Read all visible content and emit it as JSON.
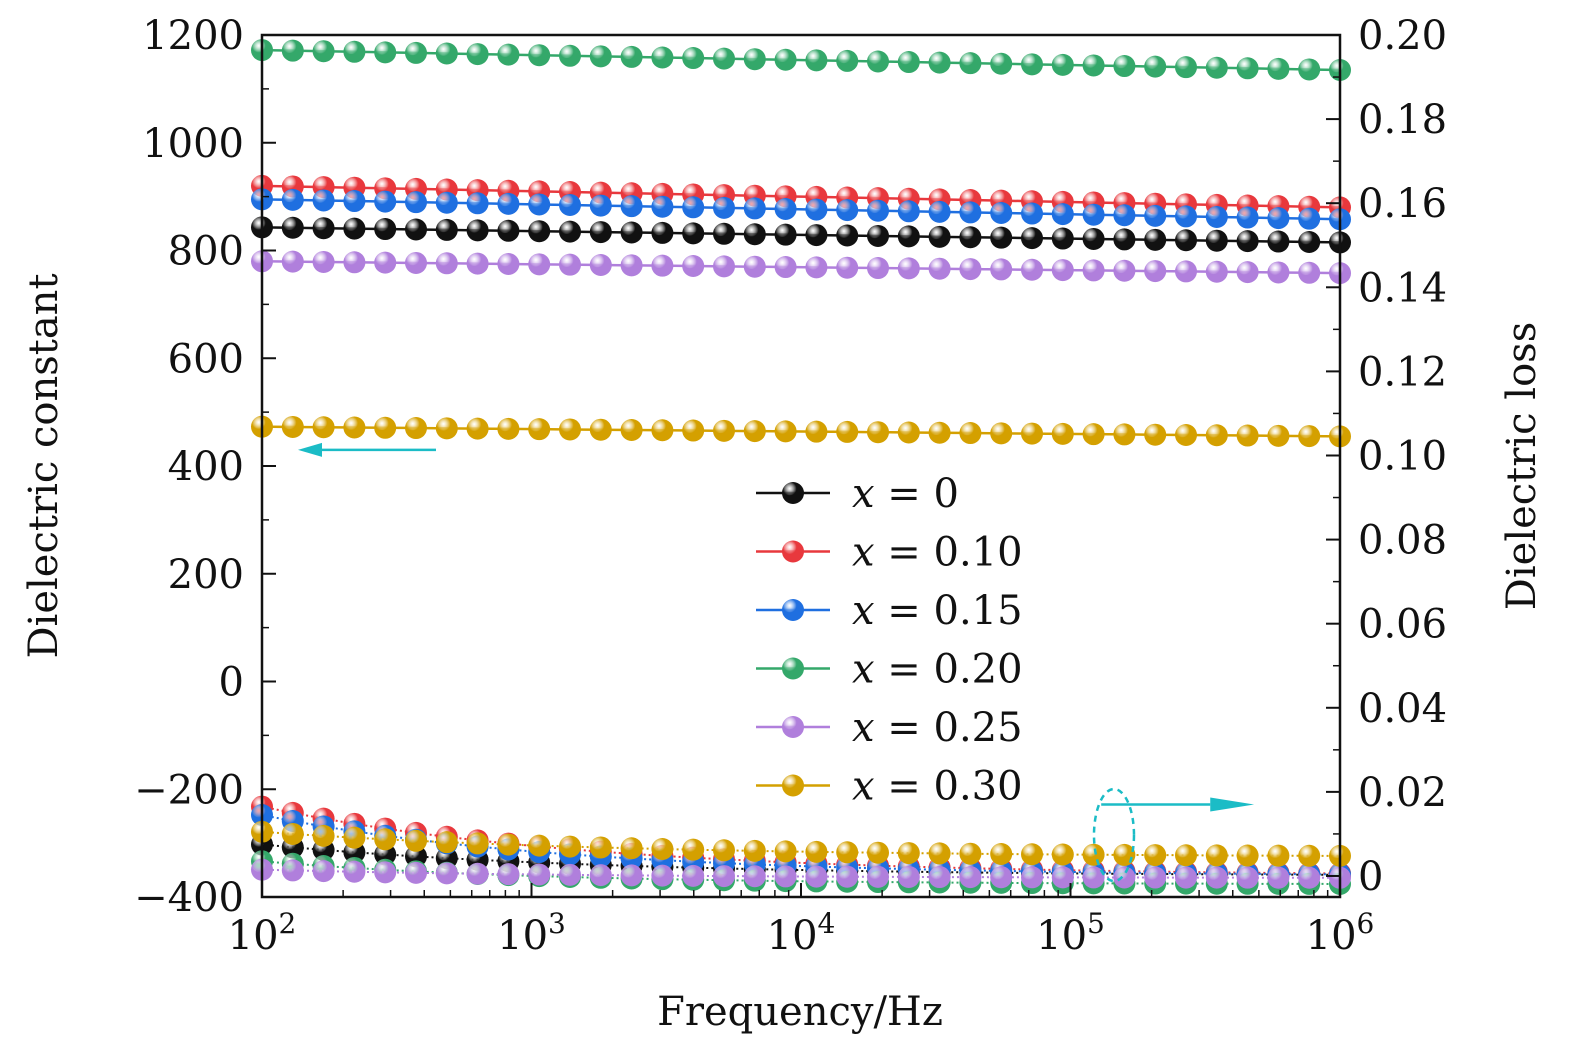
{
  "chart_data": {
    "type": "scatter",
    "title": "",
    "xlabel": "Frequency/Hz",
    "ylabel_left": "Dielectric constant",
    "ylabel_right": "Dielectric loss",
    "x_scale": "log10",
    "xlim": [
      100,
      1000000
    ],
    "ylim_left": [
      -400,
      1200
    ],
    "ylim_right": [
      -0.005,
      0.2
    ],
    "x_ticks": [
      {
        "value": 100,
        "base": "10",
        "exp": "2"
      },
      {
        "value": 1000,
        "base": "10",
        "exp": "3"
      },
      {
        "value": 10000,
        "base": "10",
        "exp": "4"
      },
      {
        "value": 100000,
        "base": "10",
        "exp": "5"
      },
      {
        "value": 1000000,
        "base": "10",
        "exp": "6"
      }
    ],
    "y_left_ticks": [
      {
        "value": 1200,
        "label": "1200"
      },
      {
        "value": 1000,
        "label": "1000"
      },
      {
        "value": 800,
        "label": "800"
      },
      {
        "value": 600,
        "label": "600"
      },
      {
        "value": 400,
        "label": "400"
      },
      {
        "value": 200,
        "label": "200"
      },
      {
        "value": 0,
        "label": "0"
      },
      {
        "value": -200,
        "label": "−200"
      },
      {
        "value": -400,
        "label": "−400"
      }
    ],
    "y_right_ticks": [
      {
        "value": 0.2,
        "label": "0.20"
      },
      {
        "value": 0.18,
        "label": "0.18"
      },
      {
        "value": 0.16,
        "label": "0.16"
      },
      {
        "value": 0.14,
        "label": "0.14"
      },
      {
        "value": 0.12,
        "label": "0.12"
      },
      {
        "value": 0.1,
        "label": "0.10"
      },
      {
        "value": 0.08,
        "label": "0.08"
      },
      {
        "value": 0.06,
        "label": "0.06"
      },
      {
        "value": 0.04,
        "label": "0.04"
      },
      {
        "value": 0.02,
        "label": "0.02"
      },
      {
        "value": 0,
        "label": "0"
      }
    ],
    "frequency_points": 36,
    "series": [
      {
        "name": "x = 0",
        "var": "x",
        "eq": "=",
        "num": "0",
        "color": "#111111",
        "dielectric_constant": {
          "start": 843,
          "end": 815
        },
        "dielectric_loss": {
          "start": 0.0075,
          "end": 0.0,
          "decay": 1.2
        }
      },
      {
        "name": "x = 0.10",
        "var": "x",
        "eq": "=",
        "num": "0.10",
        "color": "#e8383d",
        "dielectric_constant": {
          "start": 920,
          "end": 880
        },
        "dielectric_loss": {
          "start": 0.0165,
          "end": 0.0,
          "decay": 1.2
        }
      },
      {
        "name": "x = 0.15",
        "var": "x",
        "eq": "=",
        "num": "0.15",
        "color": "#1f6fe0",
        "dielectric_constant": {
          "start": 895,
          "end": 858
        },
        "dielectric_loss": {
          "start": 0.0145,
          "end": 0.0,
          "decay": 1.1
        }
      },
      {
        "name": "x = 0.20",
        "var": "x",
        "eq": "=",
        "num": "0.20",
        "color": "#34a86a",
        "dielectric_constant": {
          "start": 1172,
          "end": 1135
        },
        "dielectric_loss": {
          "start": 0.0035,
          "end": -0.002,
          "decay": 1.0
        }
      },
      {
        "name": "x = 0.25",
        "var": "x",
        "eq": "=",
        "num": "0.25",
        "color": "#b07fdc",
        "dielectric_constant": {
          "start": 780,
          "end": 758
        },
        "dielectric_loss": {
          "start": 0.0015,
          "end": -0.0005,
          "decay": 1.2
        }
      },
      {
        "name": "x = 0.30",
        "var": "x",
        "eq": "=",
        "num": "0.30",
        "color": "#d4a000",
        "dielectric_constant": {
          "start": 473,
          "end": 455
        },
        "dielectric_loss": {
          "start": 0.0105,
          "end": 0.0045,
          "decay": 1.3
        }
      }
    ],
    "annotations": [
      {
        "type": "arrow",
        "direction": "left",
        "meaning": "dielectric constant curves read on left axis",
        "color": "#1bbcc6"
      },
      {
        "type": "arrow",
        "direction": "right",
        "meaning": "dielectric loss curves read on right axis",
        "color": "#1bbcc6"
      },
      {
        "type": "dashed-ellipse",
        "meaning": "marks the dielectric loss curve group",
        "color": "#1bbcc6"
      }
    ],
    "legend_position": "center-right"
  }
}
